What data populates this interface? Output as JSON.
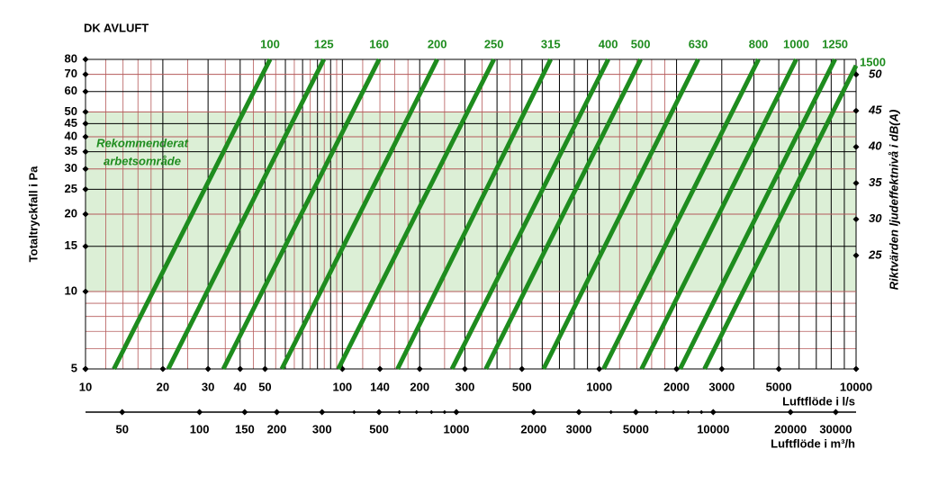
{
  "chart_data": {
    "type": "line",
    "title": "DK AVLUFT",
    "y_label": "Totaltryckfall i Pa",
    "x_label": "Luftflöde i l/s",
    "x2_label": "Luftflöde i m³/h",
    "y2_label": "Riktvärden ljudeffektnivå i dB(A)",
    "annotation": [
      "Rekommenderat",
      "arbetsområde"
    ],
    "shaded_range": [
      10,
      50
    ],
    "log_x": true,
    "log_y": true,
    "xlim": [
      10,
      10000
    ],
    "ylim": [
      5,
      80
    ],
    "xticks": [
      10,
      20,
      30,
      40,
      50,
      100,
      140,
      200,
      300,
      500,
      1000,
      2000,
      3000,
      5000,
      10000
    ],
    "xgrid": [
      10,
      20,
      30,
      40,
      50,
      60,
      70,
      80,
      90,
      100,
      200,
      300,
      400,
      500,
      600,
      700,
      800,
      900,
      1000,
      2000,
      3000,
      4000,
      5000,
      6000,
      7000,
      8000,
      9000,
      10000
    ],
    "xminor": [
      12,
      14,
      16,
      18,
      25,
      35,
      45,
      55,
      65,
      75,
      85,
      95,
      120,
      140,
      160,
      180,
      250,
      350,
      450,
      1200,
      1400,
      1600,
      1800
    ],
    "yticks": [
      5,
      10,
      15,
      20,
      25,
      30,
      35,
      40,
      45,
      50,
      60,
      70,
      80
    ],
    "yminor": [
      6,
      7,
      8,
      9
    ],
    "x2lim": [
      36,
      36000
    ],
    "x2ticks": [
      50,
      100,
      150,
      200,
      300,
      500,
      1000,
      2000,
      3000,
      5000,
      10000,
      20000,
      30000
    ],
    "x2minor": [
      400,
      600,
      700,
      800,
      900,
      4000,
      6000,
      7000,
      8000,
      9000,
      40000
    ],
    "y2lim": [
      9.3,
      52.1
    ],
    "y2ticks": [
      25,
      30,
      35,
      40,
      45,
      50
    ],
    "color": "#1e8c1e",
    "series": [
      {
        "name": "100",
        "x": [
          12.9,
          52.3
        ],
        "values": [
          5,
          80
        ]
      },
      {
        "name": "125",
        "x": [
          21.0,
          84.7
        ],
        "values": [
          5,
          80
        ]
      },
      {
        "name": "160",
        "x": [
          34.4,
          139
        ],
        "values": [
          5,
          80
        ]
      },
      {
        "name": "200",
        "x": [
          58.1,
          234
        ],
        "values": [
          5,
          80
        ]
      },
      {
        "name": "250",
        "x": [
          96.4,
          389
        ],
        "values": [
          5,
          80
        ]
      },
      {
        "name": "315",
        "x": [
          164,
          647
        ],
        "values": [
          5,
          80
        ]
      },
      {
        "name": "400",
        "x": [
          267,
          1084
        ],
        "values": [
          5,
          80
        ]
      },
      {
        "name": "500",
        "x": [
          362,
          1449
        ],
        "values": [
          5,
          80
        ]
      },
      {
        "name": "630",
        "x": [
          607,
          2427
        ],
        "values": [
          5,
          80
        ]
      },
      {
        "name": "800",
        "x": [
          1040,
          4169
        ],
        "values": [
          5,
          80
        ]
      },
      {
        "name": "1000",
        "x": [
          1462,
          5848
        ],
        "values": [
          5,
          80
        ]
      },
      {
        "name": "1250",
        "x": [
          2065,
          8278
        ],
        "values": [
          5,
          80
        ]
      },
      {
        "name": "1500",
        "x": [
          2570,
          10000
        ],
        "values": [
          5,
          75.7
        ]
      }
    ]
  }
}
